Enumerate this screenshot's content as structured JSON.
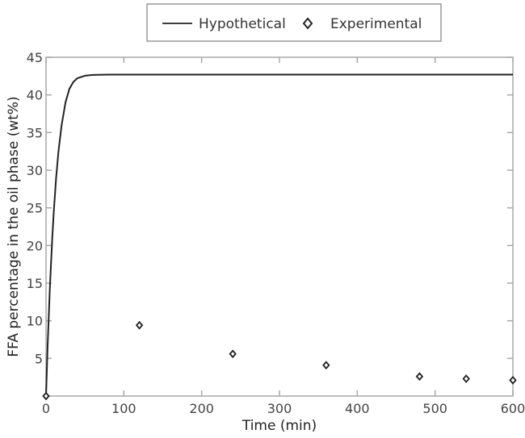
{
  "chart_data": {
    "type": "line",
    "title": "",
    "xlabel": "Time (min)",
    "ylabel": "FFA percentage in the oil phase (wt%)",
    "xlim": [
      0,
      600
    ],
    "ylim": [
      0,
      45
    ],
    "xticks": [
      0,
      100,
      200,
      300,
      400,
      500,
      600
    ],
    "yticks": [
      5,
      10,
      15,
      20,
      25,
      30,
      35,
      40,
      45
    ],
    "grid": false,
    "legend_position": "top-center-outside",
    "legend": [
      "Hypothetical",
      "Experimental"
    ],
    "series": [
      {
        "name": "Hypothetical",
        "style": "solid-line",
        "color": "#222222",
        "x": [
          0,
          2,
          5,
          8,
          10,
          13,
          16,
          20,
          25,
          30,
          35,
          40,
          50,
          60,
          80,
          100,
          150,
          200,
          300,
          400,
          500,
          600
        ],
        "values": [
          0,
          6.5,
          14.5,
          21.0,
          24.5,
          29.0,
          32.5,
          36.0,
          39.0,
          40.8,
          41.7,
          42.2,
          42.55,
          42.65,
          42.7,
          42.7,
          42.7,
          42.7,
          42.7,
          42.7,
          42.7,
          42.7
        ]
      },
      {
        "name": "Experimental",
        "style": "diamond-marker",
        "color": "#222222",
        "x": [
          0,
          120,
          240,
          360,
          480,
          540,
          600
        ],
        "values": [
          0.0,
          9.4,
          5.6,
          4.1,
          2.6,
          2.3,
          2.1
        ]
      }
    ]
  },
  "legend": {
    "items": [
      {
        "label": "Hypothetical",
        "marker": "line-icon"
      },
      {
        "label": "Experimental",
        "marker": "diamond-icon"
      }
    ]
  },
  "colors": {
    "axis": "#a0a0a0",
    "line": "#222222",
    "text": "#444444"
  }
}
